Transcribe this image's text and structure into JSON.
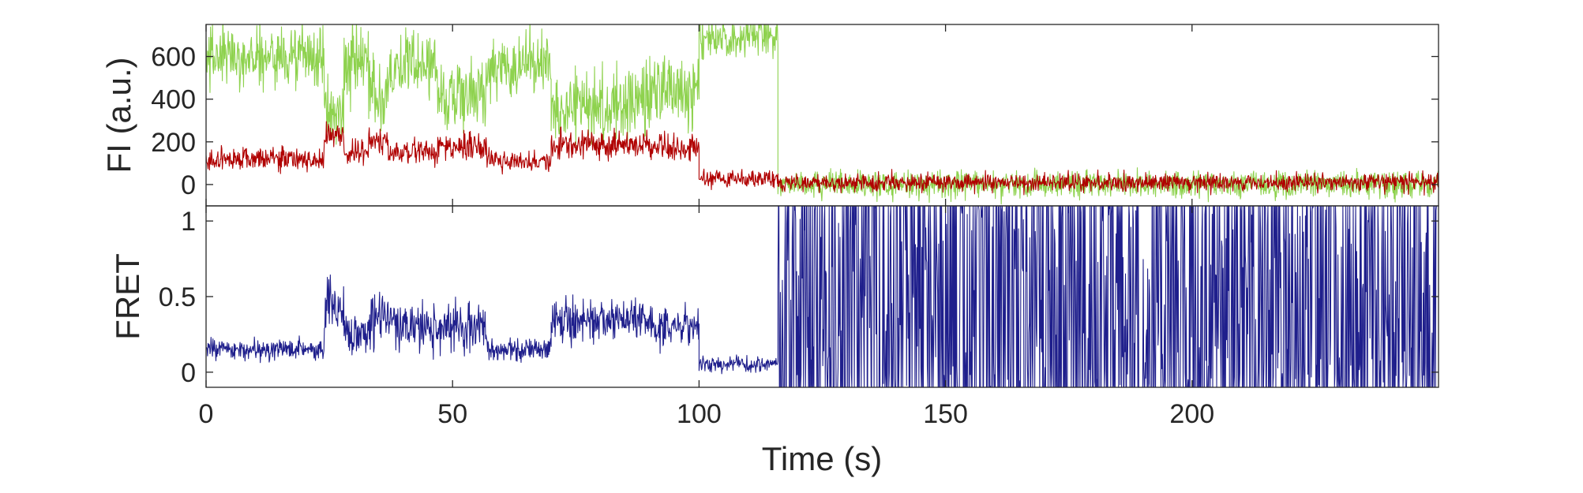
{
  "chart_data": [
    {
      "type": "line",
      "panel": "fluorescence",
      "title": "",
      "xlabel": "",
      "ylabel": "FI (a.u.)",
      "xlim": [
        0,
        250
      ],
      "ylim": [
        -100,
        750
      ],
      "xticks": [
        0,
        50,
        100,
        150,
        200
      ],
      "yticks": [
        0,
        200,
        400,
        600
      ],
      "ytick_labels": [
        "0",
        "200",
        "400",
        "600"
      ],
      "grid": false,
      "series": [
        {
          "color": "#8ed24e",
          "role": "donor",
          "segments": [
            {
              "x": [
                0,
                24
              ],
              "level": 600,
              "noise": 110
            },
            {
              "x": [
                24,
                28
              ],
              "level": 340,
              "noise": 110
            },
            {
              "x": [
                28,
                33
              ],
              "level": 560,
              "noise": 120
            },
            {
              "x": [
                33,
                37
              ],
              "level": 420,
              "noise": 120
            },
            {
              "x": [
                37,
                47
              ],
              "level": 560,
              "noise": 120
            },
            {
              "x": [
                47,
                57
              ],
              "level": 420,
              "noise": 120
            },
            {
              "x": [
                57,
                70
              ],
              "level": 560,
              "noise": 110
            },
            {
              "x": [
                70,
                90
              ],
              "level": 380,
              "noise": 120
            },
            {
              "x": [
                90,
                100
              ],
              "level": 440,
              "noise": 120
            },
            {
              "x": [
                100,
                116
              ],
              "level": 690,
              "noise": 80
            },
            {
              "x": [
                116,
                250
              ],
              "level": 0,
              "noise": 45
            }
          ]
        },
        {
          "color": "#b00000",
          "role": "acceptor",
          "segments": [
            {
              "x": [
                0,
                24
              ],
              "level": 120,
              "noise": 40
            },
            {
              "x": [
                24,
                28
              ],
              "level": 230,
              "noise": 45
            },
            {
              "x": [
                28,
                33
              ],
              "level": 150,
              "noise": 45
            },
            {
              "x": [
                33,
                37
              ],
              "level": 200,
              "noise": 45
            },
            {
              "x": [
                37,
                47
              ],
              "level": 150,
              "noise": 40
            },
            {
              "x": [
                47,
                57
              ],
              "level": 180,
              "noise": 45
            },
            {
              "x": [
                57,
                70
              ],
              "level": 110,
              "noise": 35
            },
            {
              "x": [
                70,
                90
              ],
              "level": 190,
              "noise": 45
            },
            {
              "x": [
                90,
                100
              ],
              "level": 170,
              "noise": 45
            },
            {
              "x": [
                100,
                116
              ],
              "level": 30,
              "noise": 30
            },
            {
              "x": [
                116,
                250
              ],
              "level": 10,
              "noise": 30
            }
          ]
        }
      ]
    },
    {
      "type": "line",
      "panel": "fret",
      "title": "",
      "xlabel": "Time (s)",
      "ylabel": "FRET",
      "xlim": [
        0,
        250
      ],
      "ylim": [
        -0.1,
        1.1
      ],
      "xticks": [
        0,
        50,
        100,
        150,
        200
      ],
      "xtick_labels": [
        "0",
        "50",
        "100",
        "150",
        "200"
      ],
      "yticks": [
        0,
        0.5,
        1
      ],
      "ytick_labels": [
        "0",
        "0.5",
        "1"
      ],
      "grid": false,
      "series": [
        {
          "color": "#1f1f8c",
          "role": "fret",
          "segments": [
            {
              "x": [
                0,
                24
              ],
              "level": 0.15,
              "noise": 0.05
            },
            {
              "x": [
                24,
                28
              ],
              "level": 0.45,
              "noise": 0.12
            },
            {
              "x": [
                28,
                33
              ],
              "level": 0.25,
              "noise": 0.1
            },
            {
              "x": [
                33,
                37
              ],
              "level": 0.35,
              "noise": 0.12
            },
            {
              "x": [
                37,
                47
              ],
              "level": 0.3,
              "noise": 0.12
            },
            {
              "x": [
                47,
                57
              ],
              "level": 0.3,
              "noise": 0.12
            },
            {
              "x": [
                57,
                70
              ],
              "level": 0.15,
              "noise": 0.05
            },
            {
              "x": [
                70,
                90
              ],
              "level": 0.35,
              "noise": 0.1
            },
            {
              "x": [
                90,
                100
              ],
              "level": 0.3,
              "noise": 0.1
            },
            {
              "x": [
                100,
                116
              ],
              "level": 0.05,
              "noise": 0.04
            },
            {
              "x": [
                116,
                250
              ],
              "level": "random",
              "range": [
                -0.1,
                1.1
              ]
            }
          ]
        }
      ]
    }
  ]
}
